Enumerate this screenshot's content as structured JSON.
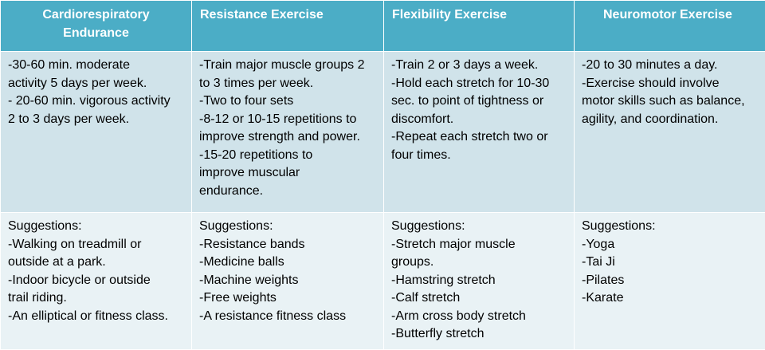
{
  "table": {
    "headers": [
      "Cardiorespiratory Endurance",
      "Resistance Exercise",
      "Flexibility Exercise",
      "Neuromotor Exercise"
    ],
    "guidelines": [
      [
        "-30-60 min. moderate",
        "activity 5 days per week.",
        "- 20-60 min. vigorous activity",
        "2 to 3 days per week."
      ],
      [
        "-Train major muscle groups 2",
        "to 3 times per week.",
        "-Two to four sets",
        "-8-12 or 10-15 repetitions to",
        "improve strength and power.",
        "-15-20 repetitions to",
        "improve muscular",
        "endurance."
      ],
      [
        "-Train 2 or 3 days a week.",
        "-Hold each stretch for 10-30",
        "sec. to point of tightness or",
        "discomfort.",
        "-Repeat each stretch two or",
        "four times."
      ],
      [
        "-20 to 30 minutes a day.",
        "-Exercise should involve",
        "motor skills such as balance,",
        "agility, and coordination."
      ]
    ],
    "suggestions": [
      [
        "Suggestions:",
        "-Walking on treadmill or",
        "outside at a park.",
        "-Indoor bicycle or outside",
        "trail riding.",
        "-An elliptical  or fitness class."
      ],
      [
        "Suggestions:",
        "-Resistance bands",
        "-Medicine balls",
        "-Machine weights",
        "-Free weights",
        "-A resistance fitness class"
      ],
      [
        "Suggestions:",
        "-Stretch major muscle",
        "groups.",
        "-Hamstring stretch",
        "-Calf stretch",
        "-Arm cross body stretch",
        "-Butterfly stretch"
      ],
      [
        "Suggestions:",
        "-Yoga",
        "-Tai Ji",
        "-Pilates",
        "-Karate"
      ]
    ]
  },
  "colors": {
    "header_bg": "#4badc6",
    "header_text": "#ffffff",
    "row1_bg": "#d0e3ea",
    "row2_bg": "#e9f2f5"
  }
}
